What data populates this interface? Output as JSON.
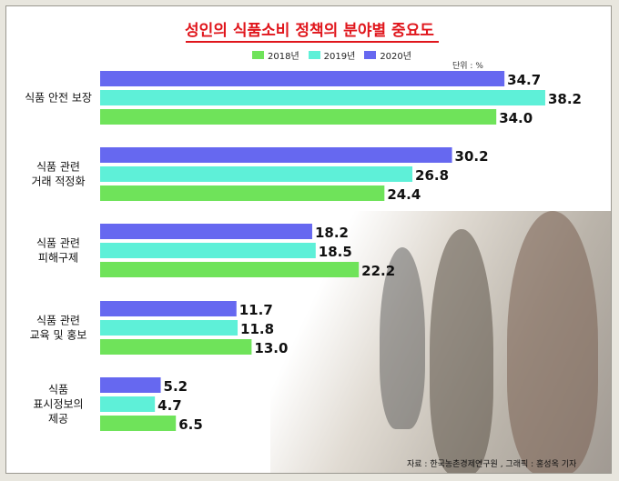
{
  "title": "성인의 식품소비 정책의 분야별 중요도",
  "unit": "단위 : %",
  "source": "자료 : 한국농촌경제연구원 , 그래픽 : 홍성옥 기자",
  "colors": {
    "2018": "#6fe35a",
    "2019": "#5ef0d8",
    "2020": "#6668f0",
    "title": "#e0161c"
  },
  "chart_data": {
    "type": "bar",
    "orientation": "horizontal",
    "title": "성인의 식품소비 정책의 분야별 중요도",
    "xlabel": "",
    "ylabel": "",
    "xlim": [
      0,
      40
    ],
    "categories": [
      [
        "식품 안전 보장"
      ],
      [
        "식품 관련",
        "거래 적정화"
      ],
      [
        "식품 관련",
        "피해구제"
      ],
      [
        "식품 관련",
        "교육 및 홍보"
      ],
      [
        "식품",
        "표시정보의",
        "제공"
      ]
    ],
    "series": [
      {
        "name": "2020년",
        "values": [
          34.7,
          30.2,
          18.2,
          11.7,
          5.2
        ]
      },
      {
        "name": "2019년",
        "values": [
          38.2,
          26.8,
          18.5,
          11.8,
          4.7
        ]
      },
      {
        "name": "2018년",
        "values": [
          34.0,
          24.4,
          22.2,
          13.0,
          6.5
        ]
      }
    ],
    "legend": [
      {
        "name": "2018년",
        "color": "#6fe35a"
      },
      {
        "name": "2019년",
        "color": "#5ef0d8"
      },
      {
        "name": "2020년",
        "color": "#6668f0"
      }
    ],
    "legend_position": "top",
    "grid": false
  }
}
